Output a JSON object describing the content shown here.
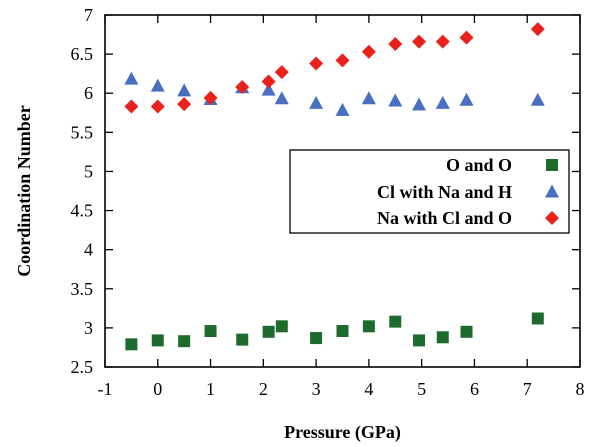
{
  "chart_data": {
    "type": "scatter",
    "xlabel": "Pressure (GPa)",
    "ylabel": "Coordination Number",
    "xlim": [
      -1,
      8
    ],
    "ylim": [
      2.5,
      7
    ],
    "xticks": [
      -1,
      0,
      1,
      2,
      3,
      4,
      5,
      6,
      7,
      8
    ],
    "yticks": [
      2.5,
      3,
      3.5,
      4,
      4.5,
      5,
      5.5,
      6,
      6.5,
      7
    ],
    "xtick_labels": [
      "-1",
      "0",
      "1",
      "2",
      "3",
      "4",
      "5",
      "6",
      "7",
      "8"
    ],
    "ytick_labels": [
      "2.5",
      "3",
      "3.5",
      "4",
      "4.5",
      "5",
      "5.5",
      "6",
      "6.5",
      "7"
    ],
    "grid": false,
    "legend_position": "right",
    "series": [
      {
        "name": "O and O",
        "marker": "square",
        "color": "#1e6b2e",
        "points": [
          [
            -0.5,
            2.79
          ],
          [
            0.0,
            2.84
          ],
          [
            0.5,
            2.83
          ],
          [
            1.0,
            2.96
          ],
          [
            1.6,
            2.85
          ],
          [
            2.1,
            2.95
          ],
          [
            2.35,
            3.02
          ],
          [
            3.0,
            2.87
          ],
          [
            3.5,
            2.96
          ],
          [
            4.0,
            3.02
          ],
          [
            4.5,
            3.08
          ],
          [
            4.95,
            2.84
          ],
          [
            5.4,
            2.88
          ],
          [
            5.85,
            2.95
          ],
          [
            7.2,
            3.12
          ]
        ]
      },
      {
        "name": "Cl with Na and H",
        "marker": "triangle",
        "color": "#4a6fc0",
        "points": [
          [
            -0.5,
            6.18
          ],
          [
            0.0,
            6.09
          ],
          [
            0.5,
            6.03
          ],
          [
            1.0,
            5.92
          ],
          [
            1.6,
            6.07
          ],
          [
            2.1,
            6.04
          ],
          [
            2.35,
            5.93
          ],
          [
            3.0,
            5.87
          ],
          [
            3.5,
            5.78
          ],
          [
            4.0,
            5.93
          ],
          [
            4.5,
            5.9
          ],
          [
            4.95,
            5.85
          ],
          [
            5.4,
            5.87
          ],
          [
            5.85,
            5.91
          ],
          [
            7.2,
            5.91
          ]
        ]
      },
      {
        "name": "Na with Cl and O",
        "marker": "diamond",
        "color": "#e8211c",
        "points": [
          [
            -0.5,
            5.83
          ],
          [
            0.0,
            5.83
          ],
          [
            0.5,
            5.86
          ],
          [
            1.0,
            5.94
          ],
          [
            1.6,
            6.08
          ],
          [
            2.1,
            6.15
          ],
          [
            2.35,
            6.27
          ],
          [
            3.0,
            6.38
          ],
          [
            3.5,
            6.42
          ],
          [
            4.0,
            6.53
          ],
          [
            4.5,
            6.63
          ],
          [
            4.95,
            6.66
          ],
          [
            5.4,
            6.66
          ],
          [
            5.85,
            6.71
          ],
          [
            7.2,
            6.82
          ]
        ]
      }
    ]
  }
}
